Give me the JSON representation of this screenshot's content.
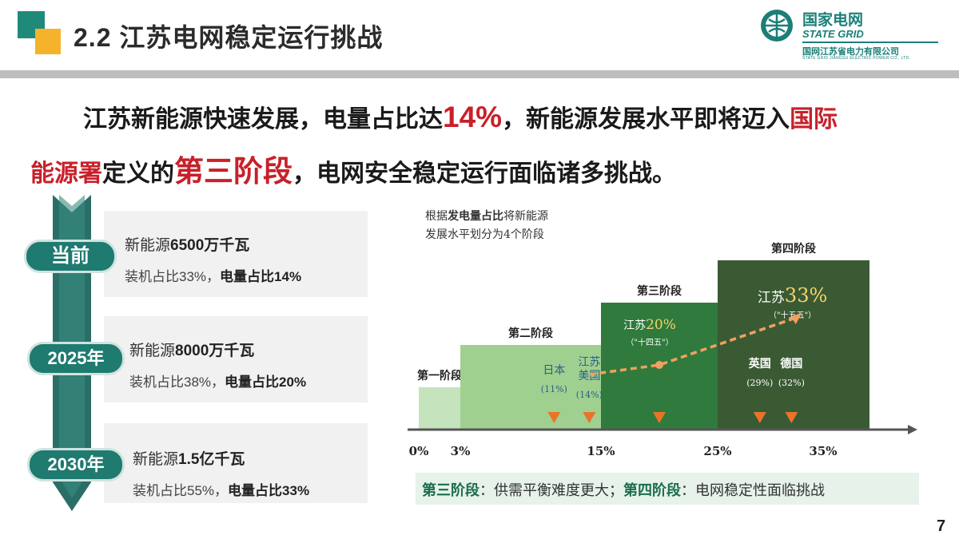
{
  "header": {
    "title": "2.2 江苏电网稳定运行挑战",
    "logo": {
      "cn": "国家电网",
      "en": "STATE GRID",
      "sub": "国网江苏省电力有限公司",
      "tiny": "STATE GRID JIANGSU ELECTRIC POWER CO., LTD."
    }
  },
  "headline": {
    "line1_a": "江苏新能源快速发展，电量占比达",
    "line1_pct": "14%",
    "line1_b": "，新能源发展水平即将迈入",
    "line1_c": "国际",
    "line2_a": "能源署",
    "line2_b": "定义的",
    "line2_c": "第三阶段",
    "line2_d": "，电网安全稳定运行面临诸多挑战。"
  },
  "timeline": [
    {
      "label": "当前",
      "cap_prefix": "新能源",
      "cap_value": "6500万千瓦",
      "det_prefix": "装机占比33%，",
      "det_value": "电量占比14%"
    },
    {
      "label": "2025年",
      "cap_prefix": "新能源",
      "cap_value": "8000万千瓦",
      "det_prefix": "装机占比38%，",
      "det_value": "电量占比20%"
    },
    {
      "label": "2030年",
      "cap_prefix": "新能源",
      "cap_value": "1.5亿千瓦",
      "det_prefix": "装机占比55%，",
      "det_value": "电量占比33%"
    }
  ],
  "chart": {
    "note_a": "根据",
    "note_b": "发电量占比",
    "note_c": "将新能源",
    "note_d": "发展水平划分为4个阶段",
    "colors": {
      "stage1": "#c5e3bd",
      "stage2": "#9fd08f",
      "stage3": "#2f7a3c",
      "stage4": "#3a5a34",
      "marker": "#e8742a",
      "trend": "#f0a060"
    }
  },
  "chart_data": {
    "type": "bar",
    "categories": [
      "第一阶段",
      "第二阶段",
      "第三阶段",
      "第四阶段"
    ],
    "stage_ranges": [
      [
        0,
        3
      ],
      [
        3,
        15
      ],
      [
        15,
        25
      ],
      [
        25,
        35
      ]
    ],
    "x_ticks": [
      "0%",
      "3%",
      "15%",
      "25%",
      "35%"
    ],
    "relative_heights": [
      1,
      2,
      3,
      4
    ],
    "points": [
      {
        "label": "日本",
        "value_label": "(11%)",
        "x": 11
      },
      {
        "label": "江苏\n美国",
        "value_label": "(14%)",
        "x": 14
      },
      {
        "label": "江苏20%",
        "value_label": "（\"十四五\"）",
        "x": 20
      },
      {
        "label": "英国",
        "value_label": "(29%)",
        "x": 29
      },
      {
        "label": "德国",
        "value_label": "(32%)",
        "x": 32
      },
      {
        "label": "江苏33%",
        "value_label": "（\"十五五\"）",
        "x": 33
      }
    ],
    "trend": [
      14,
      20,
      33
    ]
  },
  "bottom": {
    "s3_label": "第三阶段",
    "s3_text": "：供需平衡难度更大；",
    "s4_label": "第四阶段",
    "s4_text": "：电网稳定性面临挑战"
  },
  "page_number": "7"
}
